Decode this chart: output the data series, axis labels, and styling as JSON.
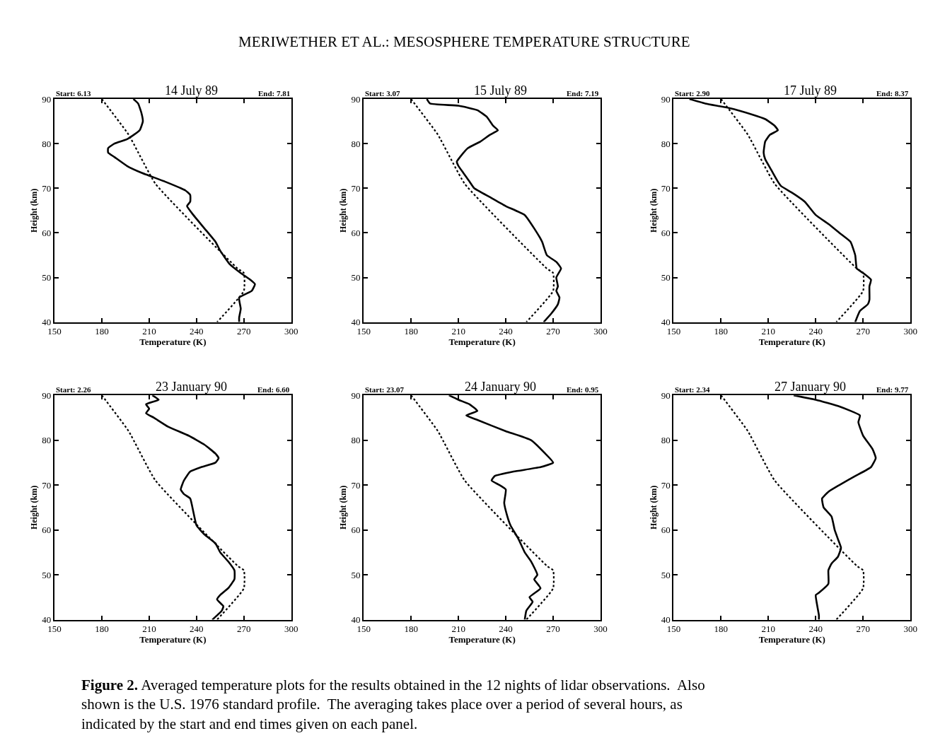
{
  "chart_data": [
    {
      "type": "line",
      "title": "14 July 89",
      "xlabel": "Temperature (K)",
      "ylabel": "Height (km)",
      "xlim": [
        150,
        300
      ],
      "ylim": [
        40,
        90
      ],
      "xticks": [
        150,
        180,
        210,
        240,
        270,
        300
      ],
      "yticks": [
        40,
        50,
        60,
        70,
        80,
        90
      ],
      "annotations": [
        "Start: 6.13",
        "End: 7.81",
        "MERIWETHER ET AL.: MESOSPHERE TEMPERATURE STRUCTURE"
      ],
      "series": [
        {
          "color": "#000000",
          "line_style": "solid",
          "x": [
            200,
            203,
            205,
            206,
            204,
            196,
            188,
            184,
            184,
            188,
            196,
            205,
            220,
            233,
            236,
            236,
            234,
            238,
            245,
            252,
            255,
            261,
            268,
            274,
            277,
            275,
            267,
            268,
            267,
            267
          ],
          "values": [
            90,
            89,
            87,
            85,
            83,
            81,
            80,
            79,
            78,
            77,
            75,
            73.5,
            71.5,
            69.5,
            68.5,
            67,
            66,
            64,
            61,
            58,
            56,
            53,
            51,
            49.5,
            48.5,
            47,
            45.5,
            43,
            41,
            40
          ]
        },
        {
          "color": "#000000",
          "line_style": "dotted",
          "x": [
            180,
            197,
            214,
            266,
            270,
            270,
            253
          ],
          "values": [
            90,
            82,
            71,
            52,
            51,
            47,
            40
          ]
        }
      ]
    },
    {
      "type": "line",
      "title": "15 July 89",
      "xlabel": "Temperature (K)",
      "ylabel": "Height (km)",
      "xlim": [
        150,
        300
      ],
      "ylim": [
        40,
        90
      ],
      "xticks": [
        150,
        180,
        210,
        240,
        270,
        300
      ],
      "yticks": [
        40,
        50,
        60,
        70,
        80,
        90
      ],
      "annotations": [
        "Start: 3.07",
        "End: 7.19"
      ],
      "series": [
        {
          "color": "#000000",
          "line_style": "solid",
          "x": [
            190,
            192,
            210,
            222,
            228,
            232,
            235,
            230,
            224,
            216,
            211,
            209,
            210,
            213,
            217,
            220,
            230,
            240,
            252,
            258,
            263,
            266,
            272,
            275,
            272,
            273,
            272,
            274,
            273,
            269,
            264
          ],
          "values": [
            90,
            89,
            88.5,
            87.5,
            86,
            84,
            83,
            82,
            80.5,
            79,
            77,
            76,
            75,
            73.5,
            71.5,
            70,
            68,
            66,
            64,
            61,
            58,
            55,
            53.5,
            52,
            50,
            48,
            47,
            45.5,
            44,
            42,
            40
          ]
        },
        {
          "color": "#000000",
          "line_style": "dotted",
          "x": [
            180,
            197,
            214,
            266,
            270,
            270,
            253
          ],
          "values": [
            90,
            82,
            71,
            52,
            51,
            47,
            40
          ]
        }
      ]
    },
    {
      "type": "line",
      "title": "17 July 89",
      "xlabel": "Temperature (K)",
      "ylabel": "Height (km)",
      "xlim": [
        150,
        300
      ],
      "ylim": [
        40,
        90
      ],
      "xticks": [
        150,
        180,
        210,
        240,
        270,
        300
      ],
      "yticks": [
        40,
        50,
        60,
        70,
        80,
        90
      ],
      "annotations": [
        "Start: 2.90",
        "End: 8.37"
      ],
      "series": [
        {
          "color": "#000000",
          "line_style": "solid",
          "x": [
            160,
            170,
            185,
            200,
            208,
            214,
            216,
            211,
            208,
            207,
            208,
            212,
            216,
            218,
            225,
            233,
            240,
            248,
            255,
            262,
            265,
            266,
            270,
            275,
            274,
            274,
            273,
            268,
            265
          ],
          "values": [
            90,
            89,
            88,
            86.5,
            85.5,
            84,
            83,
            82,
            80.5,
            78,
            76.5,
            74,
            71.5,
            70.5,
            69,
            67,
            64,
            62,
            60,
            58,
            55,
            52,
            51,
            49.5,
            48,
            45,
            44,
            42.5,
            40
          ]
        },
        {
          "color": "#000000",
          "line_style": "dotted",
          "x": [
            180,
            197,
            214,
            266,
            270,
            270,
            253
          ],
          "values": [
            90,
            82,
            71,
            52,
            51,
            47,
            40
          ]
        }
      ]
    },
    {
      "type": "line",
      "title": "23 January 90",
      "xlabel": "Temperature (K)",
      "ylabel": "Height (km)",
      "xlim": [
        150,
        300
      ],
      "ylim": [
        40,
        90
      ],
      "xticks": [
        150,
        180,
        210,
        240,
        270,
        300
      ],
      "yticks": [
        40,
        50,
        60,
        70,
        80,
        90
      ],
      "annotations": [
        "Start: 2.26",
        "End: 6.60"
      ],
      "series": [
        {
          "color": "#000000",
          "line_style": "solid",
          "x": [
            212,
            216,
            208,
            210,
            208,
            213,
            222,
            235,
            245,
            252,
            254,
            252,
            243,
            236,
            232,
            230,
            232,
            236,
            238,
            240,
            245,
            252,
            255,
            260,
            264,
            264,
            260,
            255,
            253,
            257,
            256,
            250
          ],
          "values": [
            90,
            89,
            88,
            87,
            86,
            85,
            83,
            81,
            79,
            77,
            76,
            75,
            74,
            73,
            71,
            69,
            68,
            67,
            64,
            61,
            59,
            57,
            55,
            53,
            51,
            49,
            47,
            45.5,
            44.5,
            43,
            42,
            40
          ]
        },
        {
          "color": "#000000",
          "line_style": "dotted",
          "x": [
            180,
            197,
            214,
            266,
            270,
            270,
            253
          ],
          "values": [
            90,
            82,
            71,
            52,
            51,
            47,
            40
          ]
        }
      ]
    },
    {
      "type": "line",
      "title": "24 January 90",
      "xlabel": "Temperature (K)",
      "ylabel": "Height (km)",
      "xlim": [
        150,
        300
      ],
      "ylim": [
        40,
        90
      ],
      "xticks": [
        150,
        180,
        210,
        240,
        270,
        300
      ],
      "yticks": [
        40,
        50,
        60,
        70,
        80,
        90
      ],
      "annotations": [
        "Start: 23.07",
        "End: 0.95"
      ],
      "series": [
        {
          "color": "#000000",
          "line_style": "solid",
          "x": [
            204,
            210,
            217,
            222,
            215,
            222,
            240,
            256,
            265,
            270,
            262,
            245,
            233,
            231,
            236,
            240,
            239,
            241,
            243,
            248,
            252,
            256,
            260,
            258,
            262,
            255,
            257,
            253,
            252
          ],
          "values": [
            90,
            89,
            88,
            86.5,
            85.5,
            84.5,
            82,
            80,
            77,
            75,
            74,
            73,
            72,
            71,
            70,
            69,
            66,
            63,
            61,
            58,
            55,
            53,
            50,
            49,
            47,
            45,
            44,
            42,
            40
          ]
        },
        {
          "color": "#000000",
          "line_style": "dotted",
          "x": [
            180,
            197,
            214,
            266,
            270,
            270,
            253
          ],
          "values": [
            90,
            82,
            71,
            52,
            51,
            47,
            40
          ]
        }
      ]
    },
    {
      "type": "line",
      "title": "27 January 90",
      "xlabel": "Temperature (K)",
      "ylabel": "Height (km)",
      "xlim": [
        150,
        300
      ],
      "ylim": [
        40,
        90
      ],
      "xticks": [
        150,
        180,
        210,
        240,
        270,
        300
      ],
      "yticks": [
        40,
        50,
        60,
        70,
        80,
        90
      ],
      "annotations": [
        "Start: 2.34",
        "End: 9.77",
        "Figure 2.",
        "Averaged temperature plots for the results obtained in the 12 nights of lidar observations.  Also shown is the U.S. 1976 standard profile.  The averaging takes place over a period of several hours, as indicated by the start and end times given on each panel."
      ],
      "series": [
        {
          "color": "#000000",
          "line_style": "solid",
          "x": [
            226,
            240,
            255,
            268,
            267,
            270,
            276,
            278,
            275,
            265,
            255,
            248,
            244,
            245,
            250,
            252,
            254,
            256,
            254,
            250,
            248,
            248,
            242,
            240,
            241,
            242,
            242
          ],
          "values": [
            90,
            89,
            87.5,
            85.5,
            84,
            81,
            78,
            76,
            74,
            72,
            70,
            68.5,
            67,
            65,
            63,
            60,
            58,
            56,
            54,
            52.5,
            51,
            48,
            46,
            45.5,
            43,
            41,
            40
          ]
        },
        {
          "color": "#000000",
          "line_style": "dotted",
          "x": [
            180,
            197,
            214,
            266,
            270,
            270,
            253
          ],
          "values": [
            90,
            82,
            71,
            52,
            51,
            47,
            40
          ]
        }
      ]
    }
  ]
}
